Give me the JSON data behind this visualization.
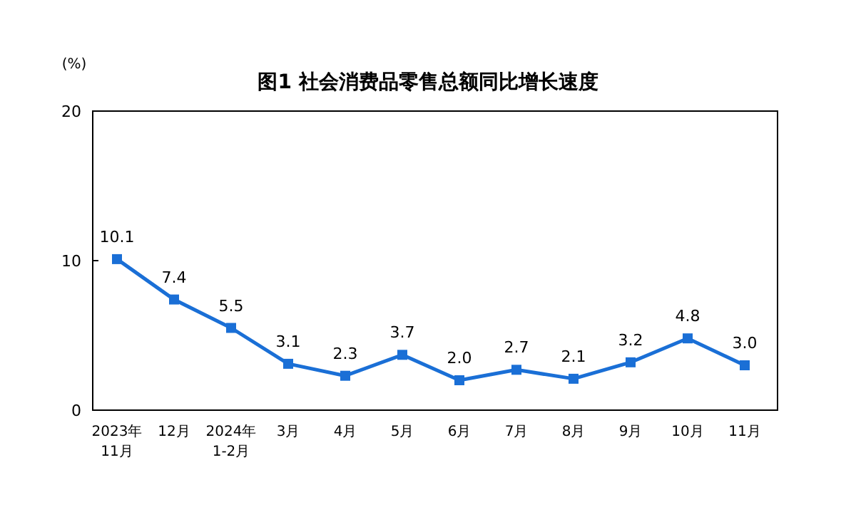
{
  "chart_data": {
    "type": "line",
    "title": "图1  社会消费品零售总额同比增长速度",
    "ylabel": "(%)",
    "categories": [
      "2023年\n11月",
      "12月",
      "2024年\n1-2月",
      "3月",
      "4月",
      "5月",
      "6月",
      "7月",
      "8月",
      "9月",
      "10月",
      "11月"
    ],
    "series": [
      {
        "color": "#1a6fd6",
        "values": [
          10.1,
          7.4,
          5.5,
          3.1,
          2.3,
          3.7,
          2.0,
          2.7,
          2.1,
          3.2,
          4.8,
          3.0
        ],
        "value_labels": [
          "10.1",
          "7.4",
          "5.5",
          "3.1",
          "2.3",
          "3.7",
          "2.0",
          "2.7",
          "2.1",
          "3.2",
          "4.8",
          "3.0"
        ]
      }
    ],
    "ylim": [
      0,
      20
    ],
    "yticks": [
      0,
      10,
      20
    ],
    "marker": "square",
    "line_style": "solid"
  }
}
